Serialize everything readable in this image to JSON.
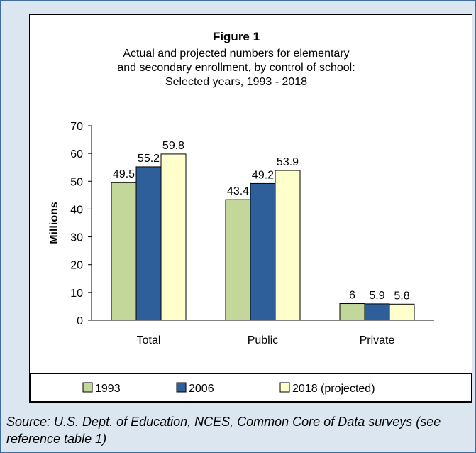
{
  "chart_data": {
    "type": "bar",
    "title": "Figure 1",
    "subtitle": [
      "Actual and projected numbers for elementary",
      "and secondary enrollment, by control of school:",
      "Selected years, 1993 - 2018"
    ],
    "xlabel": "",
    "ylabel": "Millions",
    "ylim": [
      0,
      70
    ],
    "yticks": [
      0,
      10,
      20,
      30,
      40,
      50,
      60,
      70
    ],
    "categories": [
      "Total",
      "Public",
      "Private"
    ],
    "series": [
      {
        "name": "1993",
        "values": [
          49.5,
          43.4,
          6
        ],
        "labels": [
          "49.5",
          "43.4",
          "6"
        ],
        "color": "#c4d79b"
      },
      {
        "name": "2006",
        "values": [
          55.2,
          49.2,
          5.9
        ],
        "labels": [
          "55.2",
          "49.2",
          "5.9"
        ],
        "color": "#2f5f9a"
      },
      {
        "name": "2018 (projected)",
        "values": [
          59.8,
          53.9,
          5.8
        ],
        "labels": [
          "59.8",
          "53.9",
          "5.8"
        ],
        "color": "#ffffcc"
      }
    ],
    "grid": false,
    "legend_position": "bottom",
    "bar_edge_color": "#000000"
  },
  "source": "Source: U.S. Dept. of Education, NCES, Common Core of Data surveys (see reference table 1)",
  "colors": {
    "frame_border": "#3f6d9e",
    "frame_background": "#dce6f1"
  }
}
